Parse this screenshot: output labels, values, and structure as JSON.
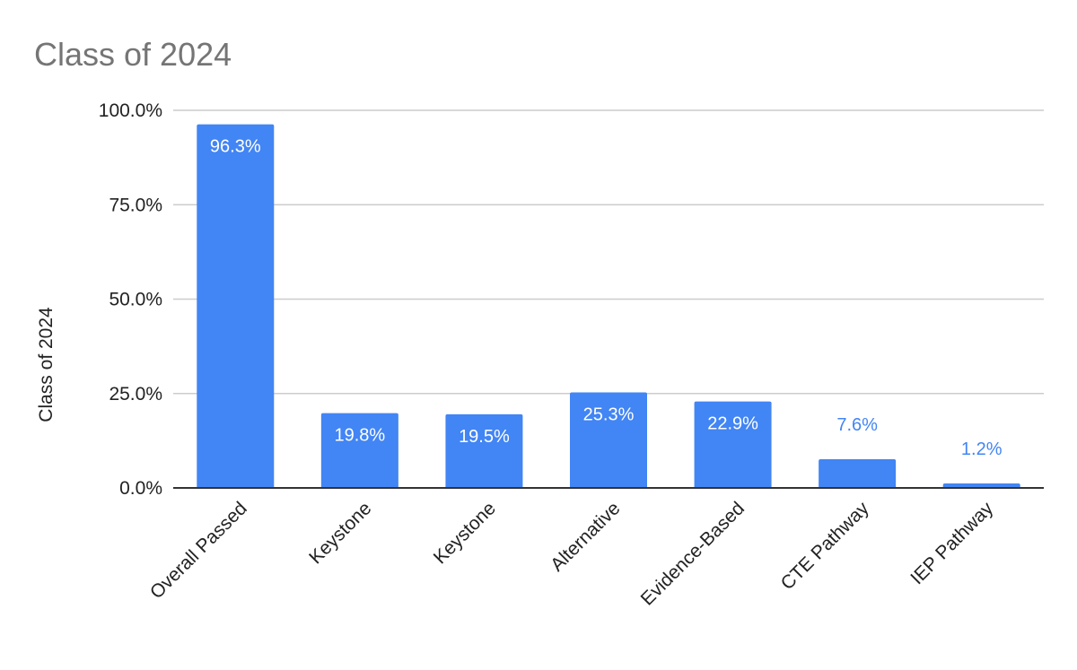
{
  "chart_data": {
    "type": "bar",
    "title": "Class of 2024",
    "xlabel": "",
    "ylabel": "Class of 2024",
    "categories": [
      "Overall Passed",
      "Keystone",
      "Keystone",
      "Alternative",
      "Evidence-Based",
      "CTE Pathway",
      "IEP Pathway"
    ],
    "values": [
      96.3,
      19.8,
      19.5,
      25.3,
      22.9,
      7.6,
      1.2
    ],
    "data_labels": [
      "96.3%",
      "19.8%",
      "19.5%",
      "25.3%",
      "22.9%",
      "7.6%",
      "1.2%"
    ],
    "ylim": [
      0,
      100
    ],
    "yticks": [
      0,
      25,
      50,
      75,
      100
    ],
    "ytick_labels": [
      "0.0%",
      "25.0%",
      "50.0%",
      "75.0%",
      "100.0%"
    ],
    "grid": true,
    "legend": "none",
    "colors": {
      "bar": "#4285f4",
      "label_inside": "#ffffff",
      "label_outside": "#4285f4",
      "grid": "#cccccc",
      "axis": "#333333",
      "title": "#757575",
      "text": "#222222"
    }
  }
}
